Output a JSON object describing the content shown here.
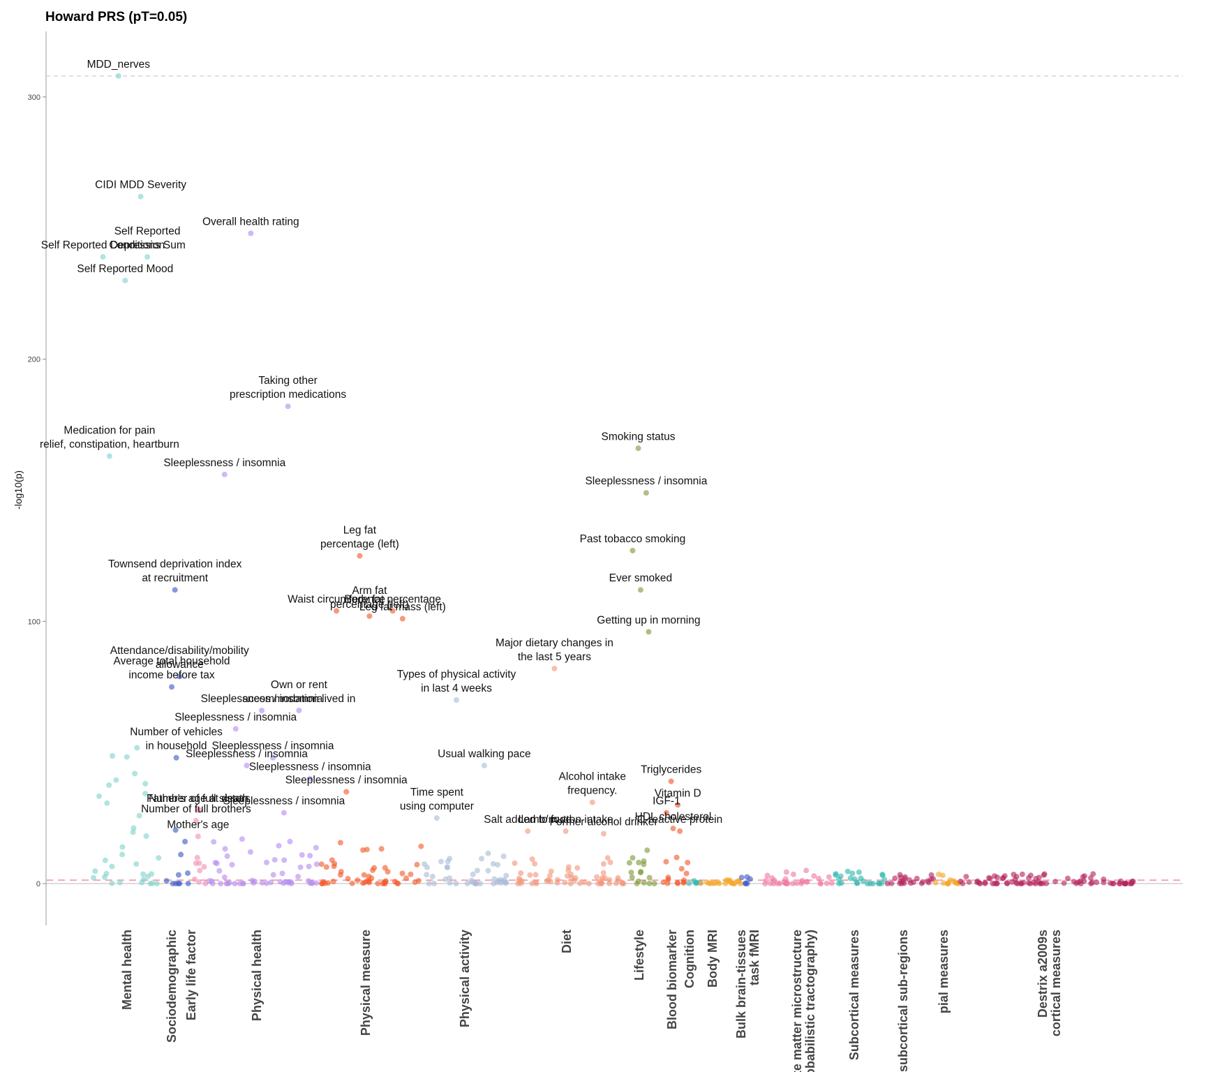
{
  "chart_data": {
    "type": "scatter",
    "title": "Howard PRS (pT=0.05)",
    "ylabel": "-log10(p)",
    "xlabel": "",
    "ylim": [
      -15,
      325
    ],
    "yticks": [
      0,
      100,
      200,
      300
    ],
    "grid": false,
    "thresholds": [
      {
        "value": 308,
        "style": "dashed",
        "color": "#cccccc"
      },
      {
        "value": 1.3,
        "style": "dashed",
        "color": "#f4a6b4"
      }
    ],
    "categories": [
      {
        "label": "Mental health",
        "color": "#7fd3cd"
      },
      {
        "label": "Sociodemographic",
        "color": "#3a5bc7"
      },
      {
        "label": "Early life factor",
        "color": "#f08fb4"
      },
      {
        "label": "Physical health",
        "color": "#b48cf2"
      },
      {
        "label": "Physical measure",
        "color": "#f25a28"
      },
      {
        "label": "Physical activity",
        "color": "#a9bcd6"
      },
      {
        "label": "Diet",
        "color": "#f3967a"
      },
      {
        "label": "Lifestyle",
        "color": "#7c9a3a"
      },
      {
        "label": "Blood biomarker",
        "color": "#f2572a"
      },
      {
        "label": "Cognition",
        "color": "#2fb8b0"
      },
      {
        "label": "Body MRI",
        "color": "#f5a623"
      },
      {
        "label": "Bulk brain-tissues task fMRI",
        "color": "#3a5bc7"
      },
      {
        "label": "White matter microstructure (Probabilistic tractography)",
        "color": "#f07aa5"
      },
      {
        "label": "Subcortical measures",
        "color": "#2fb8b0"
      },
      {
        "label": "subcortical sub-regions",
        "color": "#b3265f"
      },
      {
        "label": "pial measures",
        "color": "#f5a623"
      },
      {
        "label": "Destrix a2009s cortical measures",
        "color": "#b3265f"
      }
    ],
    "annotations": [
      {
        "label": "MDD_nerves",
        "category": "Mental health",
        "y": 308
      },
      {
        "label": "CIDI MDD Severity",
        "category": "Mental health",
        "y": 262
      },
      {
        "label": "Overall health rating",
        "category": "Physical health",
        "y": 248
      },
      {
        "label": "Self Reported Depression",
        "category": "Mental health",
        "y": 239
      },
      {
        "label": "Self Reported Mood",
        "category": "Mental health",
        "y": 230
      },
      {
        "label": "Self Reported Conditions Sum",
        "category": "Mental health",
        "y": 239
      },
      {
        "label": "Taking other prescription medications",
        "category": "Physical health",
        "y": 182
      },
      {
        "label": "Medication for pain relief, constipation, heartburn",
        "category": "Mental health",
        "y": 163
      },
      {
        "label": "Sleeplessness / insomnia",
        "category": "Physical health",
        "y": 156
      },
      {
        "label": "Smoking status",
        "category": "Lifestyle",
        "y": 166
      },
      {
        "label": "Sleeplessness / insomnia",
        "category": "Lifestyle",
        "y": 149
      },
      {
        "label": "Leg fat percentage (left)",
        "category": "Physical measure",
        "y": 125
      },
      {
        "label": "Past tobacco smoking",
        "category": "Lifestyle",
        "y": 127
      },
      {
        "label": "Townsend deprivation index at recruitment",
        "category": "Sociodemographic",
        "y": 112
      },
      {
        "label": "Ever smoked",
        "category": "Lifestyle",
        "y": 112
      },
      {
        "label": "Body fat percentage",
        "category": "Physical measure",
        "y": 104
      },
      {
        "label": "Waist circumference",
        "category": "Physical measure",
        "y": 104
      },
      {
        "label": "Arm fat percentage (left)",
        "category": "Physical measure",
        "y": 102
      },
      {
        "label": "Getting up in morning",
        "category": "Lifestyle",
        "y": 96
      },
      {
        "label": "Leg fat mass (left)",
        "category": "Physical measure",
        "y": 101
      },
      {
        "label": "Attendance/disability/mobility allowance",
        "category": "Sociodemographic",
        "y": 79
      },
      {
        "label": "Major dietary changes in the last 5 years",
        "category": "Diet",
        "y": 82
      },
      {
        "label": "Average total household income before tax",
        "category": "Sociodemographic",
        "y": 75
      },
      {
        "label": "Sleeplessness / insomnia",
        "category": "Physical health",
        "y": 66
      },
      {
        "label": "Own or rent accommodation lived in",
        "category": "Physical health",
        "y": 66
      },
      {
        "label": "Types of physical activity in last 4 weeks",
        "category": "Physical activity",
        "y": 70
      },
      {
        "label": "Sleeplessness / insomnia",
        "category": "Physical health",
        "y": 59
      },
      {
        "label": "Number of vehicles in household",
        "category": "Sociodemographic",
        "y": 48
      },
      {
        "label": "Sleeplessness / insomnia",
        "category": "Physical health",
        "y": 48
      },
      {
        "label": "Usual walking pace",
        "category": "Physical activity",
        "y": 45
      },
      {
        "label": "Sleeplessness / insomnia",
        "category": "Physical health",
        "y": 40
      },
      {
        "label": "Sleeplessness / insomnia",
        "category": "Physical health",
        "y": 45
      },
      {
        "label": "Time spent using computer",
        "category": "Physical activity",
        "y": 25
      },
      {
        "label": "Alcohol intake frequency.",
        "category": "Diet",
        "y": 31
      },
      {
        "label": "Triglycerides",
        "category": "Blood biomarker",
        "y": 39
      },
      {
        "label": "Father's age at death",
        "category": "Early life factor",
        "y": 28
      },
      {
        "label": "Number of full sisters",
        "category": "Early life factor",
        "y": 28
      },
      {
        "label": "Sleeplessness / insomnia",
        "category": "Physical measure",
        "y": 35
      },
      {
        "label": "Vitamin D",
        "category": "Blood biomarker",
        "y": 30
      },
      {
        "label": "IGF-1",
        "category": "Blood biomarker",
        "y": 27
      },
      {
        "label": "Number of full brothers",
        "category": "Early life factor",
        "y": 24
      },
      {
        "label": "Salt added to food",
        "category": "Diet",
        "y": 20
      },
      {
        "label": "HDL cholesterol",
        "category": "Blood biomarker",
        "y": 21
      },
      {
        "label": "Sleeplessness / insomnia",
        "category": "Physical health",
        "y": 27
      },
      {
        "label": "C-reactive protein",
        "category": "Blood biomarker",
        "y": 20
      },
      {
        "label": "Lamb/mutton intake",
        "category": "Diet",
        "y": 20
      },
      {
        "label": "Mother's age",
        "category": "Early life factor",
        "y": 18
      },
      {
        "label": "Former alcohol drinker",
        "category": "Diet",
        "y": 19
      }
    ]
  }
}
